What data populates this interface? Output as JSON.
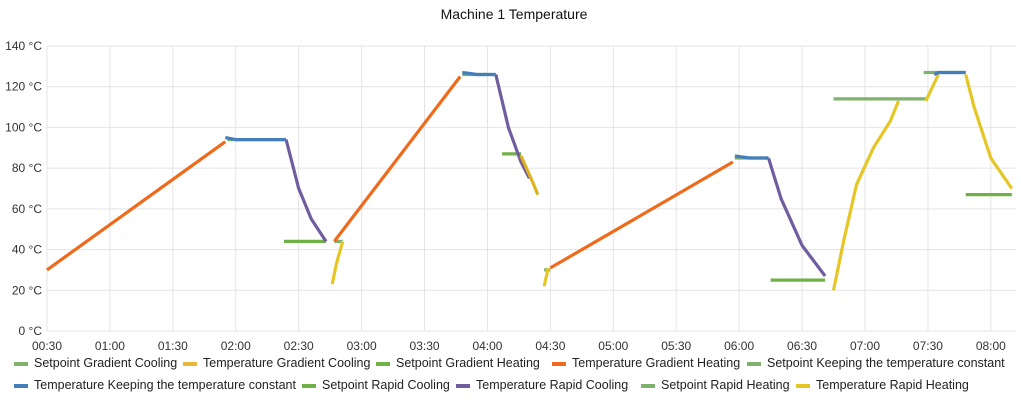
{
  "chart_data": {
    "type": "line",
    "title": "Machine 1 Temperature",
    "xlabel": "",
    "ylabel": "",
    "x_unit": "time (HH:MM)",
    "y_unit": "°C",
    "xlim": [
      "00:30",
      "08:12"
    ],
    "ylim": [
      0,
      140
    ],
    "x_ticks": [
      "00:30",
      "01:00",
      "01:30",
      "02:00",
      "02:30",
      "03:00",
      "03:30",
      "04:00",
      "04:30",
      "05:00",
      "05:30",
      "06:00",
      "06:30",
      "07:00",
      "07:30",
      "08:00"
    ],
    "y_ticks": [
      "0 °C",
      "20 °C",
      "40 °C",
      "60 °C",
      "80 °C",
      "100 °C",
      "120 °C",
      "140 °C"
    ],
    "grid": true,
    "legend_position": "bottom",
    "series": [
      {
        "name": "Setpoint Gradient Cooling",
        "color": "#7eb26d",
        "points": []
      },
      {
        "name": "Temperature Gradient Cooling",
        "color": "#eab839",
        "points": []
      },
      {
        "name": "Setpoint Gradient Heating",
        "color": "#6fb144",
        "points": []
      },
      {
        "name": "Temperature Gradient Heating",
        "color": "#ef6a1b",
        "points": [
          [
            "00:30",
            30
          ],
          [
            "01:55",
            93
          ],
          null,
          [
            "02:47",
            44
          ],
          [
            "03:47",
            125
          ],
          null,
          [
            "04:30",
            31
          ],
          [
            "05:57",
            83
          ]
        ]
      },
      {
        "name": "Setpoint Keeping the temperature constant",
        "color": "#7eb26d",
        "points": [
          [
            "01:56",
            94
          ],
          [
            "02:24",
            94
          ],
          null,
          [
            "03:48",
            126
          ],
          [
            "04:04",
            126
          ],
          null,
          [
            "05:58",
            85
          ],
          [
            "06:14",
            85
          ],
          null,
          [
            "07:33",
            127
          ],
          [
            "07:48",
            127
          ]
        ]
      },
      {
        "name": "Temperature Keeping the temperature constant",
        "color": "#447ebc",
        "points": [
          [
            "01:55",
            95
          ],
          [
            "02:00",
            94
          ],
          [
            "02:24",
            94
          ],
          null,
          [
            "03:48",
            127
          ],
          [
            "03:55",
            126
          ],
          [
            "04:04",
            126
          ],
          null,
          [
            "05:58",
            86
          ],
          [
            "06:05",
            85
          ],
          [
            "06:14",
            85
          ],
          null,
          [
            "07:33",
            126
          ],
          [
            "07:35",
            127
          ],
          [
            "07:48",
            127
          ]
        ]
      },
      {
        "name": "Setpoint Rapid Cooling",
        "color": "#6fb144",
        "points": [
          [
            "02:23",
            44
          ],
          [
            "02:43",
            44
          ],
          null,
          [
            "04:07",
            87
          ],
          [
            "04:16",
            87
          ],
          null,
          [
            "06:15",
            25
          ],
          [
            "06:41",
            25
          ],
          null,
          [
            "07:48",
            67
          ],
          [
            "08:10",
            67
          ]
        ]
      },
      {
        "name": "Temperature Rapid Cooling",
        "color": "#705da0",
        "points": [
          [
            "02:24",
            94
          ],
          [
            "02:30",
            70
          ],
          [
            "02:36",
            55
          ],
          [
            "02:43",
            44
          ],
          null,
          [
            "04:04",
            126
          ],
          [
            "04:10",
            100
          ],
          [
            "04:16",
            83
          ],
          [
            "04:20",
            75
          ],
          null,
          [
            "06:14",
            85
          ],
          [
            "06:20",
            65
          ],
          [
            "06:30",
            42
          ],
          [
            "06:41",
            27
          ]
        ]
      },
      {
        "name": "Setpoint Rapid Heating",
        "color": "#7eb26d",
        "points": [
          [
            "02:47",
            44
          ],
          [
            "02:51",
            44
          ],
          null,
          [
            "04:27",
            30
          ],
          [
            "04:30",
            30
          ],
          null,
          [
            "06:45",
            114
          ],
          [
            "07:30",
            114
          ],
          null,
          [
            "07:28",
            127
          ],
          [
            "07:34",
            127
          ]
        ]
      },
      {
        "name": "Temperature Rapid Heating",
        "color": "#e5c625",
        "points": [
          [
            "02:46",
            23
          ],
          [
            "02:48",
            33
          ],
          [
            "02:51",
            44
          ],
          null,
          [
            "04:27",
            22
          ],
          [
            "04:29",
            31
          ],
          null,
          [
            "06:45",
            20
          ],
          [
            "06:50",
            45
          ],
          [
            "06:56",
            72
          ],
          [
            "07:04",
            90
          ],
          [
            "07:12",
            103
          ],
          [
            "07:16",
            113
          ],
          null,
          [
            "07:29",
            113
          ],
          [
            "07:35",
            126
          ],
          null,
          [
            "07:48",
            126
          ],
          [
            "07:52",
            110
          ],
          [
            "08:00",
            85
          ],
          [
            "08:10",
            70
          ]
        ]
      }
    ],
    "extra_series": [
      {
        "legend_ref": "Setpoint Gradient Cooling",
        "color": "#7eb26d",
        "points": []
      },
      {
        "legend_ref": "Temperature Gradient Cooling",
        "color": "#dcb31f",
        "points": [
          [
            "04:16",
            86
          ],
          [
            "04:22",
            72
          ],
          [
            "04:24",
            67
          ]
        ]
      }
    ]
  }
}
